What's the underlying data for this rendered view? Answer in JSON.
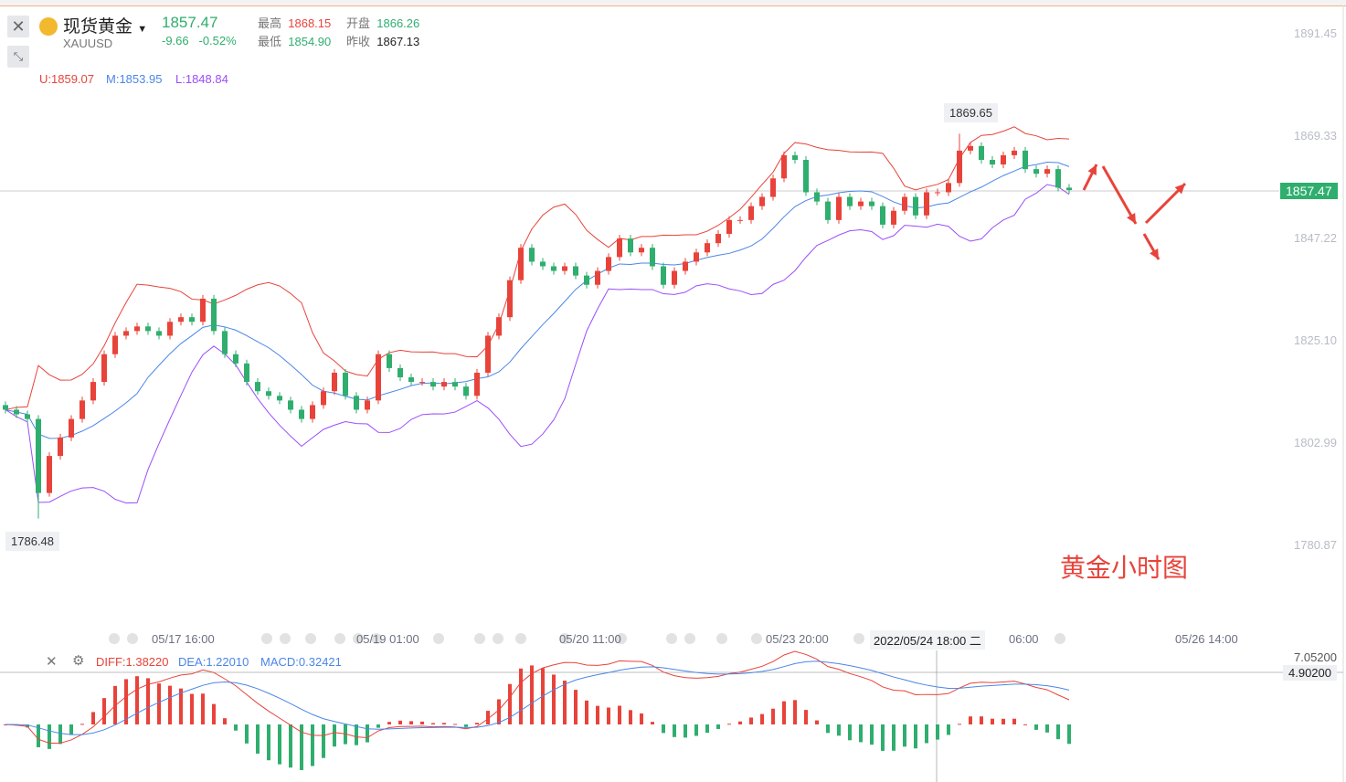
{
  "header": {
    "name": "现货黄金",
    "symbol": "XAUUSD",
    "last": "1857.47",
    "change": "-9.66",
    "change_pct": "-0.52%",
    "high_label": "最高",
    "high": "1868.15",
    "open_label": "开盘",
    "open": "1866.26",
    "low_label": "最低",
    "low": "1854.90",
    "prev_label": "昨收",
    "prev": "1867.13"
  },
  "indicators": {
    "upper": "U:1859.07",
    "mid": "M:1853.95",
    "lower": "L:1848.84"
  },
  "macd_legend": {
    "dif": "DIFF:1.38220",
    "dea": "DEA:1.22010",
    "macd": "MACD:0.32421"
  },
  "colors": {
    "up": "#e8433a",
    "down": "#2fae6e",
    "upper": "#e8433a",
    "mid": "#4a86e8",
    "lower": "#9b4dfa"
  },
  "annotation": "黄金小时图",
  "current_price_tag": "1857.47",
  "macd_tag": "4.90200",
  "macd_axis_top": "7.05200",
  "crosshair_time": "2022/05/24 18:00 二",
  "chart_data": {
    "type": "candlestick",
    "title": "现货黄金 XAUUSD 1H",
    "y_ticks": [
      "1891.45",
      "1869.33",
      "1847.22",
      "1825.10",
      "1802.99",
      "1780.87"
    ],
    "ylim": [
      1780.87,
      1891.45
    ],
    "x_ticks": [
      "05/17 16:00",
      "05/19 01:00",
      "05/20 11:00",
      "05/23 20:00",
      "06:00",
      "05/26 14:00"
    ],
    "max_label": "1869.65",
    "min_label": "1786.48",
    "first_open": 1811,
    "closes": [
      1810,
      1809,
      1808,
      1792,
      1800,
      1804,
      1808,
      1812,
      1816,
      1822,
      1826,
      1827,
      1828,
      1827,
      1826,
      1829,
      1830,
      1829,
      1834,
      1827,
      1822,
      1820,
      1816,
      1814,
      1813,
      1812,
      1810,
      1808,
      1811,
      1814,
      1818,
      1813,
      1810,
      1812,
      1822,
      1819,
      1817,
      1816,
      1816,
      1815,
      1816,
      1815,
      1813,
      1818,
      1826,
      1830,
      1838,
      1845,
      1842,
      1841,
      1840,
      1841,
      1839,
      1837,
      1840,
      1843,
      1847,
      1844,
      1845,
      1841,
      1837,
      1840,
      1842,
      1844,
      1846,
      1848,
      1851,
      1851,
      1854,
      1856,
      1860,
      1865,
      1864,
      1857,
      1855,
      1851,
      1856,
      1854,
      1855,
      1854,
      1850,
      1853,
      1856,
      1852,
      1857,
      1857,
      1859,
      1866,
      1867,
      1864,
      1863,
      1865,
      1866,
      1862,
      1861,
      1862,
      1858,
      1857.47
    ],
    "extreme_low": {
      "index": 3,
      "value": 1786.48
    },
    "extreme_high": {
      "index": 87,
      "value": 1869.65
    }
  }
}
